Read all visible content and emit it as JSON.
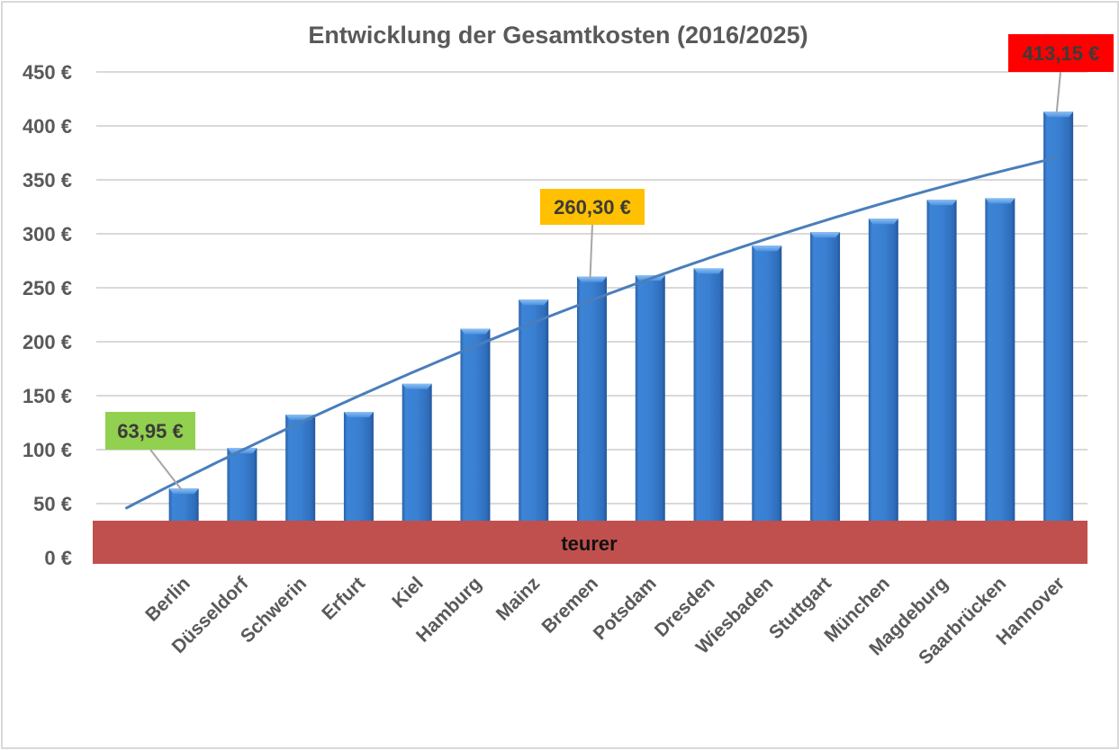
{
  "chart_data": {
    "type": "bar",
    "title": "Entwicklung der Gesamtkosten (2016/2025)",
    "xlabel": "",
    "ylabel": "",
    "ylim": [
      0,
      450
    ],
    "y_ticks": [
      0,
      50,
      100,
      150,
      200,
      250,
      300,
      350,
      400,
      450
    ],
    "y_tick_labels": [
      "0 €",
      "50 €",
      "100 €",
      "150 €",
      "200 €",
      "250 €",
      "300 €",
      "350 €",
      "400 €",
      "450 €"
    ],
    "grid": true,
    "legend": "none",
    "categories": [
      "Berlin",
      "Düsseldorf",
      "Schwerin",
      "Erfurt",
      "Kiel",
      "Hamburg",
      "Mainz",
      "Bremen",
      "Potsdam",
      "Dresden",
      "Wiesbaden",
      "Stuttgart",
      "München",
      "Magdeburg",
      "Saarbrücken",
      "Hannover"
    ],
    "series": [
      {
        "name": "Gesamtkosten",
        "values": [
          63.95,
          101.5,
          132.5,
          135,
          161,
          212,
          239,
          260.3,
          261.5,
          268,
          289,
          301.5,
          314,
          331.5,
          333,
          413.15
        ],
        "color": "#2e75c6"
      }
    ],
    "trendline": {
      "type": "polynomial",
      "order": 2,
      "color": "#4a7ebb"
    },
    "annotations": [
      {
        "category": "Berlin",
        "text": "63,95 €",
        "background": "#92d050"
      },
      {
        "category": "Bremen",
        "text": "260,30 €",
        "background": "#ffc000"
      },
      {
        "category": "Hannover",
        "text": "413,15 €",
        "background": "#ff0000"
      }
    ],
    "band": {
      "text": "teurer",
      "color": "#c0504d",
      "range": [
        0,
        35
      ]
    }
  }
}
